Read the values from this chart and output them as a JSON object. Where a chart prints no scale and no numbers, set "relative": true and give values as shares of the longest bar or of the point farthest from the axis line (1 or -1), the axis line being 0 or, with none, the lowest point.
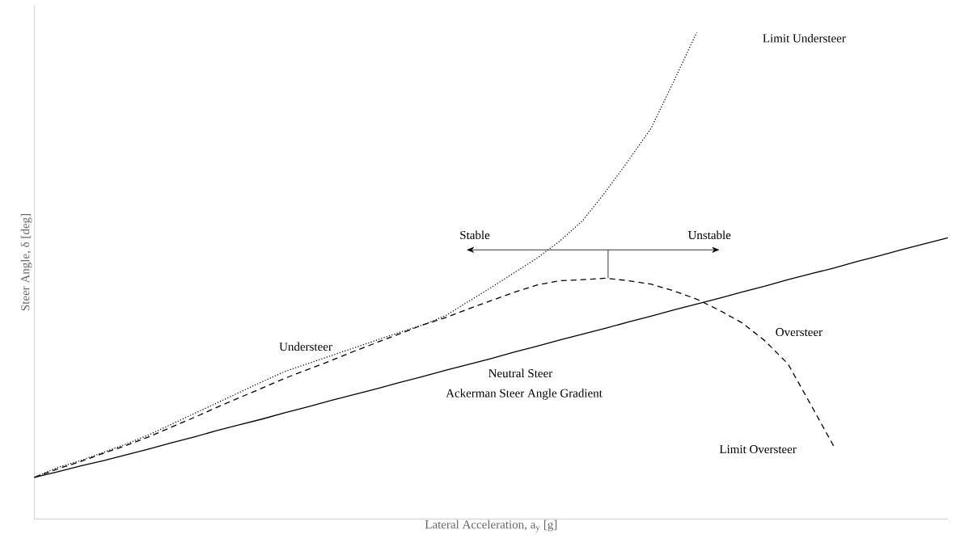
{
  "chart_data": {
    "type": "line",
    "xlabel": "Lateral Acceleration, a$_{y}$ [g]",
    "ylabel": "Steer Angle, δ [deg]",
    "relative": true,
    "categories": [
      null,
      null,
      null,
      null,
      null,
      null,
      null,
      null,
      null,
      null,
      null,
      null,
      null,
      null,
      null,
      null,
      null,
      null,
      null,
      null,
      null,
      null,
      null,
      null,
      null,
      null,
      null,
      null,
      null,
      null,
      null,
      null,
      null,
      null,
      null,
      null,
      null,
      null,
      null,
      null,
      null
    ],
    "series": [
      {
        "color": "#000000",
        "line_style": "solid",
        "values": [
          0.086,
          0.097,
          0.109,
          0.12,
          0.132,
          0.144,
          0.157,
          0.169,
          0.182,
          0.194,
          0.206,
          0.219,
          0.231,
          0.244,
          0.256,
          0.268,
          0.281,
          0.293,
          0.306,
          0.318,
          0.33,
          0.343,
          0.355,
          0.368,
          0.38,
          0.392,
          0.405,
          0.417,
          0.43,
          0.442,
          0.454,
          0.467,
          0.479,
          0.492,
          0.504,
          0.516,
          0.529,
          0.541,
          0.554,
          0.566,
          0.578
        ]
      },
      {
        "color": "#000000",
        "line_style": "dotted",
        "values": [
          0.086,
          0.106,
          0.12,
          0.137,
          0.154,
          0.173,
          0.195,
          0.217,
          0.239,
          0.261,
          0.283,
          0.304,
          0.32,
          0.336,
          0.352,
          0.368,
          0.384,
          0.399,
          0.418,
          0.447,
          0.476,
          0.506,
          0.536,
          0.571,
          0.613,
          0.672,
          0.736,
          0.803,
          0.9,
          1.0,
          null,
          null,
          null,
          null,
          null,
          null,
          null,
          null,
          null,
          null,
          null
        ]
      },
      {
        "color": "#000000",
        "line_style": "dashed",
        "values": [
          0.086,
          0.103,
          0.118,
          0.135,
          0.151,
          0.169,
          0.189,
          0.209,
          0.23,
          0.25,
          0.27,
          0.29,
          0.308,
          0.326,
          0.345,
          0.363,
          0.381,
          0.399,
          0.414,
          0.432,
          0.449,
          0.466,
          0.481,
          0.49,
          0.492,
          0.495,
          0.49,
          0.483,
          0.469,
          0.452,
          0.429,
          0.403,
          0.366,
          0.319,
          0.235,
          0.15,
          null,
          null,
          null,
          null,
          null
        ]
      }
    ],
    "annotations": [
      "Understeer",
      "Neutral Steer",
      "Ackerman Steer Angle Gradient",
      "Oversteer",
      "Limit Understeer",
      "Limit Oversteer",
      "Stable",
      "Unstable"
    ]
  }
}
